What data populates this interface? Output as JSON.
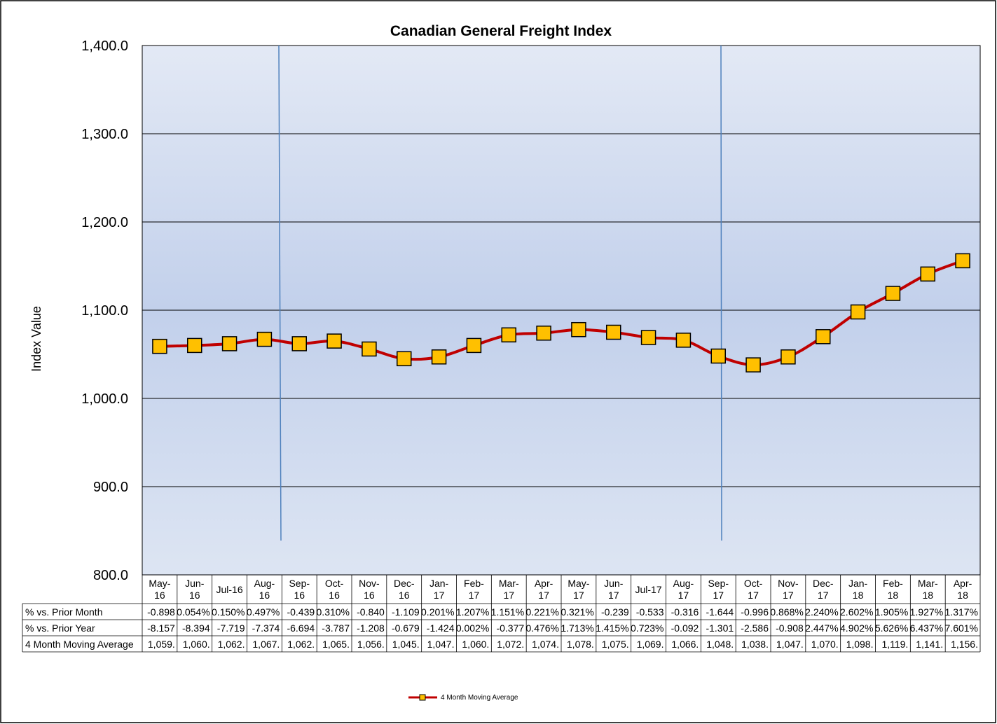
{
  "chart_data": {
    "type": "line",
    "title": "Canadian General Freight Index",
    "ylabel": "Index Value",
    "ylim": [
      800,
      1400
    ],
    "yticks": [
      "1,400.0",
      "1,300.0",
      "1,200.0",
      "1,100.0",
      "1,000.0",
      "900.0",
      "800.0"
    ],
    "ytick_values": [
      1400,
      1300,
      1200,
      1100,
      1000,
      900,
      800
    ],
    "grid": true,
    "legend_position": "bottom",
    "categories": [
      [
        "May-",
        "16"
      ],
      [
        "Jun-",
        "16"
      ],
      [
        "Jul-16"
      ],
      [
        "Aug-",
        "16"
      ],
      [
        "Sep-",
        "16"
      ],
      [
        "Oct-",
        "16"
      ],
      [
        "Nov-",
        "16"
      ],
      [
        "Dec-",
        "16"
      ],
      [
        "Jan-",
        "17"
      ],
      [
        "Feb-",
        "17"
      ],
      [
        "Mar-",
        "17"
      ],
      [
        "Apr-",
        "17"
      ],
      [
        "May-",
        "17"
      ],
      [
        "Jun-",
        "17"
      ],
      [
        "Jul-17"
      ],
      [
        "Aug-",
        "17"
      ],
      [
        "Sep-",
        "17"
      ],
      [
        "Oct-",
        "17"
      ],
      [
        "Nov-",
        "17"
      ],
      [
        "Dec-",
        "17"
      ],
      [
        "Jan-",
        "18"
      ],
      [
        "Feb-",
        "18"
      ],
      [
        "Mar-",
        "18"
      ],
      [
        "Apr-",
        "18"
      ]
    ],
    "vertical_markers_after": [
      "Aug-16",
      "Sep-17"
    ],
    "series": [
      {
        "name": "4 Month Moving Average",
        "color": "#C00000",
        "marker_fill": "#FFC000",
        "values": [
          1059,
          1060,
          1062,
          1067,
          1062,
          1065,
          1056,
          1045,
          1047,
          1060,
          1072,
          1074,
          1078,
          1075,
          1069,
          1066,
          1048,
          1038,
          1047,
          1070,
          1098,
          1119,
          1141,
          1156
        ]
      }
    ],
    "table": {
      "rows": [
        {
          "label": "% vs. Prior Month",
          "cells": [
            "-0.898",
            "0.054%",
            "0.150%",
            "0.497%",
            "-0.439",
            "0.310%",
            "-0.840",
            "-1.109",
            "0.201%",
            "1.207%",
            "1.151%",
            "0.221%",
            "0.321%",
            "-0.239",
            "-0.533",
            "-0.316",
            "-1.644",
            "-0.996",
            "0.868%",
            "2.240%",
            "2.602%",
            "1.905%",
            "1.927%",
            "1.317%"
          ]
        },
        {
          "label": "% vs. Prior Year",
          "cells": [
            "-8.157",
            "-8.394",
            "-7.719",
            "-7.374",
            "-6.694",
            "-3.787",
            "-1.208",
            "-0.679",
            "-1.424",
            "0.002%",
            "-0.377",
            "0.476%",
            "1.713%",
            "1.415%",
            "0.723%",
            "-0.092",
            "-1.301",
            "-2.586",
            "-0.908",
            "2.447%",
            "4.902%",
            "5.626%",
            "6.437%",
            "7.601%"
          ]
        },
        {
          "label": "4 Month Moving Average",
          "cells": [
            "1,059.",
            "1,060.",
            "1,062.",
            "1,067.",
            "1,062.",
            "1,065.",
            "1,056.",
            "1,045.",
            "1,047.",
            "1,060.",
            "1,072.",
            "1,074.",
            "1,078.",
            "1,075.",
            "1,069.",
            "1,066.",
            "1,048.",
            "1,038.",
            "1,047.",
            "1,070.",
            "1,098.",
            "1,119.",
            "1,141.",
            "1,156."
          ]
        }
      ]
    },
    "legend": "4 Month Moving Average"
  }
}
